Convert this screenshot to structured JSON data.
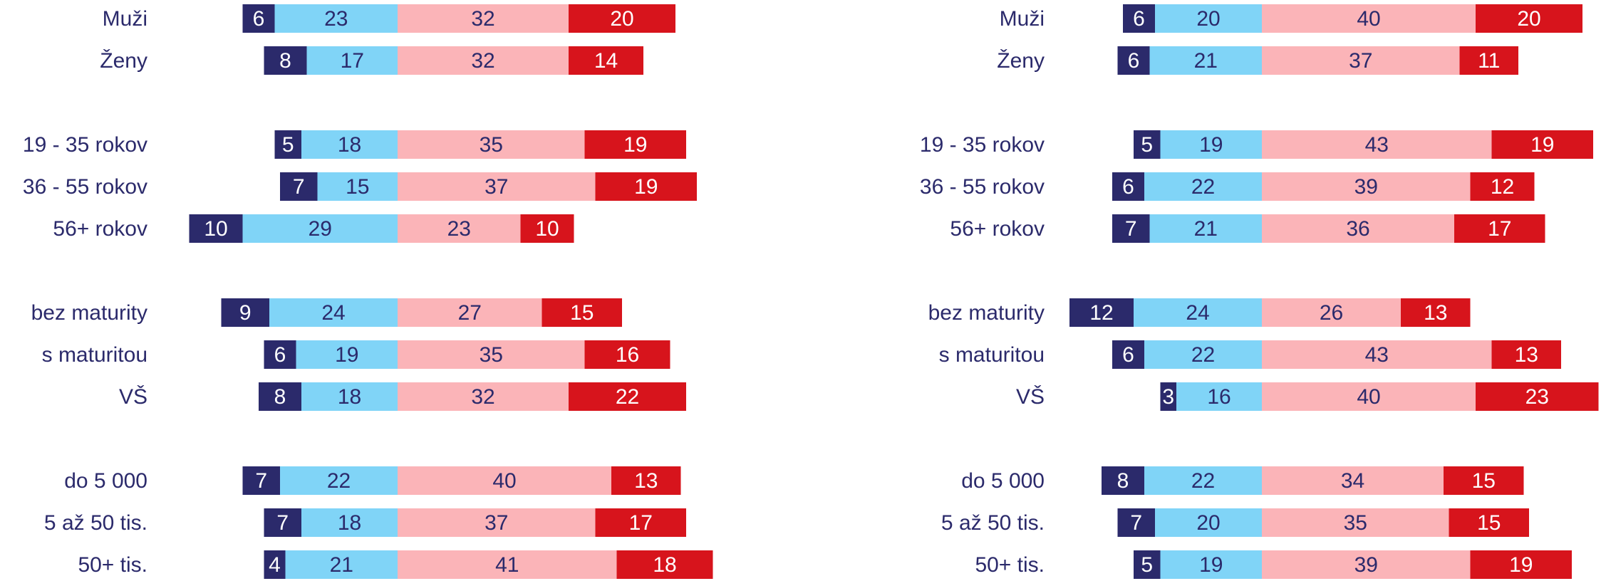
{
  "chart_data": [
    {
      "type": "diverging-bar",
      "categories": [
        "Muži",
        "Ženy",
        "19 - 35 rokov",
        "36 - 55 rokov",
        "56+ rokov",
        "bez maturity",
        "s maturitou",
        "VŠ",
        "do 5 000",
        "5 až 50 tis.",
        "50+ tis."
      ],
      "series": [
        {
          "color": "#2b2a6b",
          "values": [
            6,
            8,
            5,
            7,
            10,
            9,
            6,
            8,
            7,
            7,
            4
          ]
        },
        {
          "color": "#80d4f7",
          "values": [
            23,
            17,
            18,
            15,
            29,
            24,
            19,
            18,
            22,
            18,
            21
          ]
        },
        {
          "color": "#fbb4b8",
          "values": [
            32,
            32,
            35,
            37,
            23,
            27,
            35,
            32,
            40,
            37,
            41
          ]
        },
        {
          "color": "#d7141c",
          "values": [
            20,
            14,
            19,
            19,
            10,
            15,
            16,
            22,
            13,
            17,
            18
          ]
        }
      ]
    },
    {
      "type": "diverging-bar",
      "categories": [
        "Muži",
        "Ženy",
        "19 - 35 rokov",
        "36 - 55 rokov",
        "56+ rokov",
        "bez maturity",
        "s maturitou",
        "VŠ",
        "do 5 000",
        "5 až 50 tis.",
        "50+ tis."
      ],
      "series": [
        {
          "color": "#2b2a6b",
          "values": [
            6,
            6,
            5,
            6,
            7,
            12,
            6,
            3,
            8,
            7,
            5
          ]
        },
        {
          "color": "#80d4f7",
          "values": [
            20,
            21,
            19,
            22,
            21,
            24,
            22,
            16,
            22,
            20,
            19
          ]
        },
        {
          "color": "#fbb4b8",
          "values": [
            40,
            37,
            43,
            39,
            36,
            26,
            43,
            40,
            34,
            35,
            39
          ]
        },
        {
          "color": "#d7141c",
          "values": [
            20,
            11,
            19,
            12,
            17,
            13,
            13,
            23,
            15,
            15,
            19
          ]
        }
      ]
    }
  ]
}
